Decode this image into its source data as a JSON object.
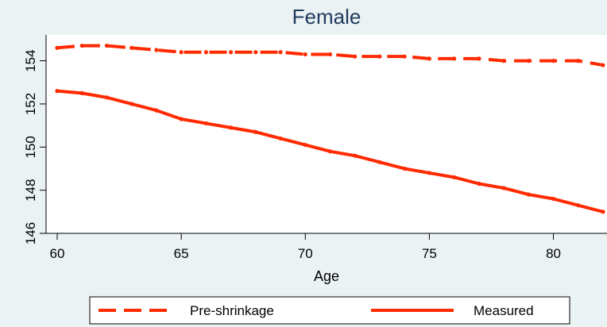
{
  "chart_data": {
    "type": "line",
    "title": "Female",
    "xlabel": "Age",
    "ylabel": "",
    "xlim": [
      60,
      82
    ],
    "ylim": [
      146,
      155.2
    ],
    "xticks": [
      60,
      65,
      70,
      75,
      80
    ],
    "yticks": [
      146,
      148,
      150,
      152,
      154
    ],
    "grid": false,
    "legend_position": "bottom",
    "x": [
      60,
      61,
      62,
      63,
      64,
      65,
      66,
      67,
      68,
      69,
      70,
      71,
      72,
      73,
      74,
      75,
      76,
      77,
      78,
      79,
      80,
      81,
      82
    ],
    "series": [
      {
        "name": "Pre-shrinkage",
        "style": "dashed",
        "color": "#ff2a00",
        "values": [
          154.6,
          154.7,
          154.7,
          154.6,
          154.5,
          154.4,
          154.4,
          154.4,
          154.4,
          154.4,
          154.3,
          154.3,
          154.2,
          154.2,
          154.2,
          154.1,
          154.1,
          154.1,
          154.0,
          154.0,
          154.0,
          154.0,
          153.8
        ]
      },
      {
        "name": "Measured",
        "style": "solid",
        "color": "#ff2a00",
        "values": [
          152.6,
          152.5,
          152.3,
          152.0,
          151.7,
          151.3,
          151.1,
          150.9,
          150.7,
          150.4,
          150.1,
          149.8,
          149.6,
          149.3,
          149.0,
          148.8,
          148.6,
          148.3,
          148.1,
          147.8,
          147.6,
          147.3,
          147.0
        ]
      }
    ]
  }
}
